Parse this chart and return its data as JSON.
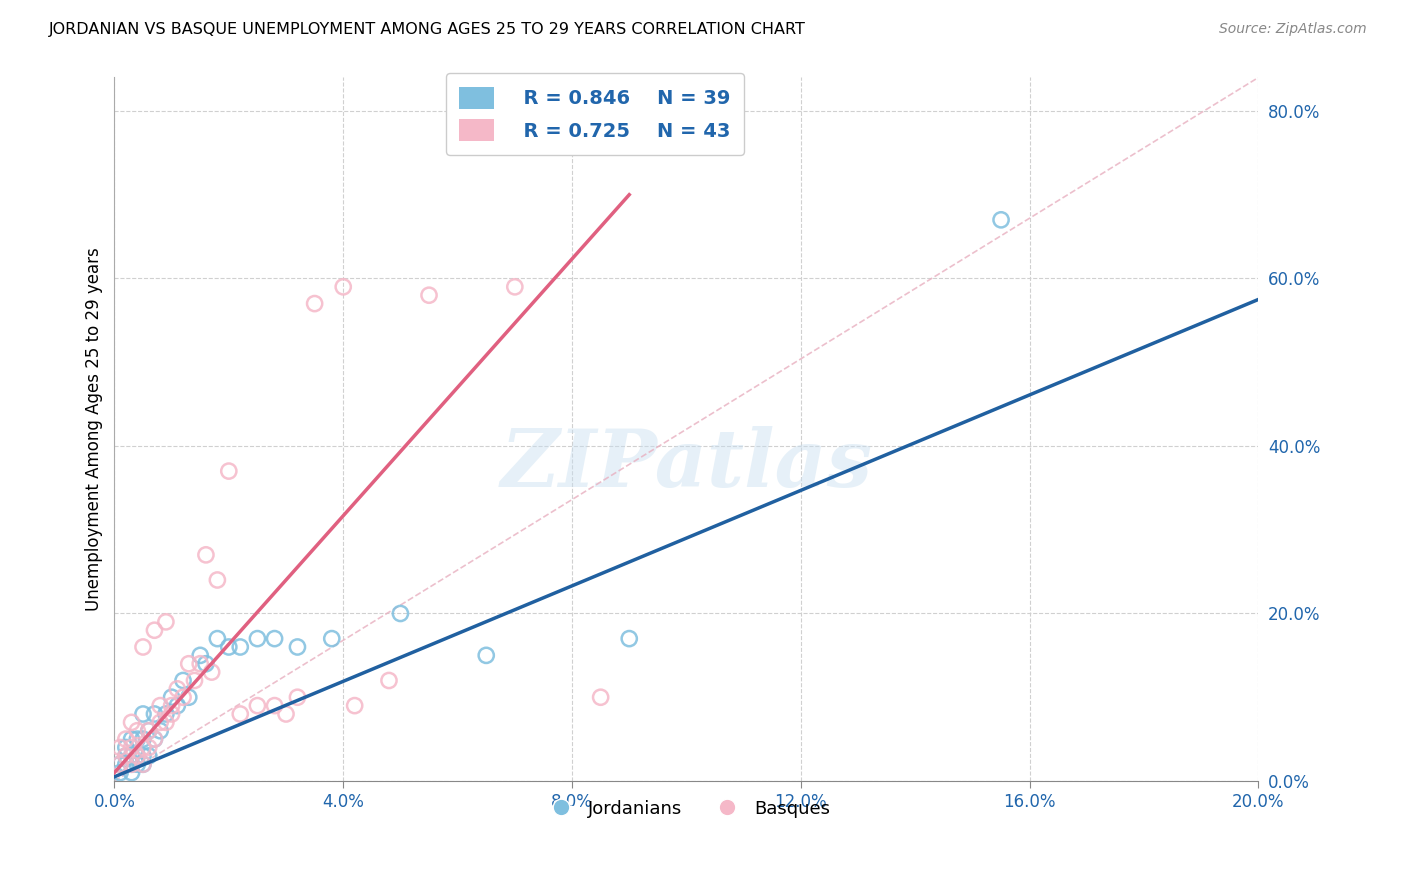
{
  "title": "JORDANIAN VS BASQUE UNEMPLOYMENT AMONG AGES 25 TO 29 YEARS CORRELATION CHART",
  "source": "Source: ZipAtlas.com",
  "ylabel": "Unemployment Among Ages 25 to 29 years",
  "xlim": [
    0,
    0.2
  ],
  "ylim": [
    0,
    0.84
  ],
  "xticks": [
    0.0,
    0.04,
    0.08,
    0.12,
    0.16,
    0.2
  ],
  "yticks": [
    0.0,
    0.2,
    0.4,
    0.6,
    0.8
  ],
  "blue_color": "#7fbfdf",
  "pink_color": "#f5b8c8",
  "blue_line_color": "#2060a0",
  "pink_line_color": "#e06080",
  "diag_line_color": "#e8b0c0",
  "legend_r_blue": "R = 0.846",
  "legend_n_blue": "N = 39",
  "legend_r_pink": "R = 0.725",
  "legend_n_pink": "N = 43",
  "legend_label_blue": "Jordanians",
  "legend_label_pink": "Basques",
  "watermark": "ZIPatlas",
  "blue_scatter_x": [
    0.001,
    0.001,
    0.002,
    0.002,
    0.002,
    0.003,
    0.003,
    0.003,
    0.003,
    0.004,
    0.004,
    0.004,
    0.005,
    0.005,
    0.005,
    0.005,
    0.006,
    0.006,
    0.007,
    0.007,
    0.008,
    0.009,
    0.01,
    0.011,
    0.012,
    0.013,
    0.015,
    0.016,
    0.018,
    0.02,
    0.022,
    0.025,
    0.028,
    0.032,
    0.038,
    0.05,
    0.065,
    0.09,
    0.155
  ],
  "blue_scatter_y": [
    0.01,
    0.02,
    0.02,
    0.03,
    0.04,
    0.01,
    0.02,
    0.03,
    0.05,
    0.02,
    0.03,
    0.05,
    0.02,
    0.03,
    0.05,
    0.08,
    0.03,
    0.06,
    0.05,
    0.08,
    0.06,
    0.08,
    0.1,
    0.09,
    0.12,
    0.1,
    0.15,
    0.14,
    0.17,
    0.16,
    0.16,
    0.17,
    0.17,
    0.16,
    0.17,
    0.2,
    0.15,
    0.17,
    0.67
  ],
  "pink_scatter_x": [
    0.001,
    0.001,
    0.002,
    0.002,
    0.003,
    0.003,
    0.003,
    0.004,
    0.004,
    0.005,
    0.005,
    0.005,
    0.006,
    0.006,
    0.007,
    0.007,
    0.008,
    0.008,
    0.009,
    0.009,
    0.01,
    0.01,
    0.011,
    0.012,
    0.013,
    0.014,
    0.015,
    0.016,
    0.017,
    0.018,
    0.02,
    0.022,
    0.025,
    0.028,
    0.03,
    0.032,
    0.035,
    0.04,
    0.042,
    0.048,
    0.055,
    0.07,
    0.085
  ],
  "pink_scatter_y": [
    0.02,
    0.04,
    0.03,
    0.05,
    0.02,
    0.04,
    0.07,
    0.03,
    0.06,
    0.02,
    0.04,
    0.16,
    0.04,
    0.06,
    0.05,
    0.18,
    0.07,
    0.09,
    0.07,
    0.19,
    0.09,
    0.08,
    0.11,
    0.1,
    0.14,
    0.12,
    0.14,
    0.27,
    0.13,
    0.24,
    0.37,
    0.08,
    0.09,
    0.09,
    0.08,
    0.1,
    0.57,
    0.59,
    0.09,
    0.12,
    0.58,
    0.59,
    0.1
  ],
  "blue_line_x": [
    0.0,
    0.2
  ],
  "blue_line_y": [
    0.005,
    0.575
  ],
  "pink_line_x": [
    0.0,
    0.09
  ],
  "pink_line_y": [
    0.01,
    0.7
  ],
  "diag_line_x": [
    0.0,
    0.2
  ],
  "diag_line_y": [
    0.0,
    0.84
  ]
}
